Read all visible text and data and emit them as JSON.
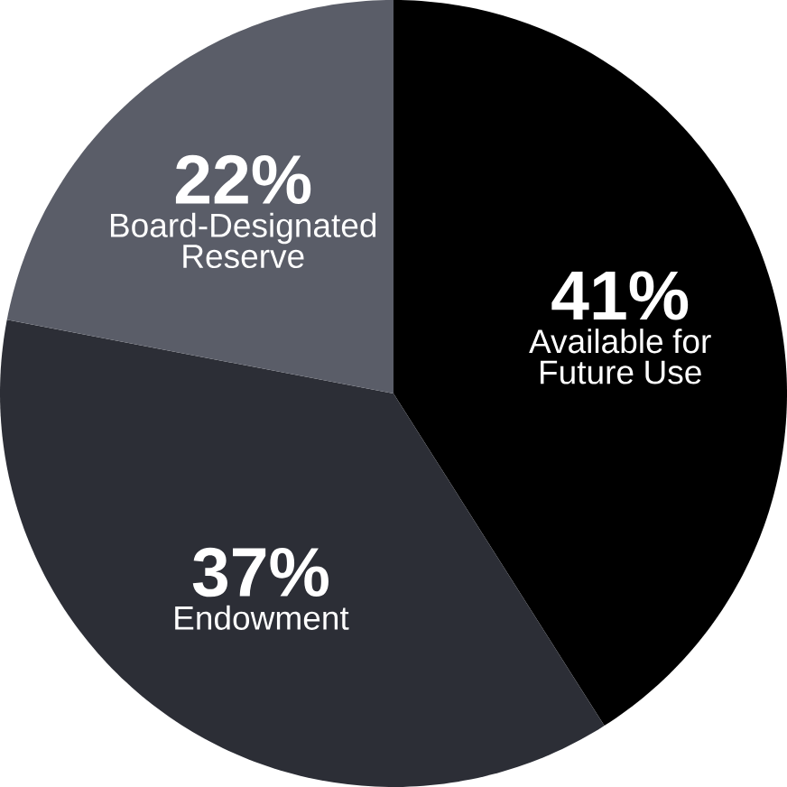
{
  "chart_data": {
    "type": "pie",
    "categories": [
      "Available for Future Use",
      "Endowment",
      "Board-Designated Reserve"
    ],
    "values": [
      41,
      37,
      22
    ],
    "value_labels": [
      "41%",
      "37%",
      "22%"
    ],
    "colors": [
      "#000000",
      "#2c2e36",
      "#5a5d68"
    ]
  }
}
